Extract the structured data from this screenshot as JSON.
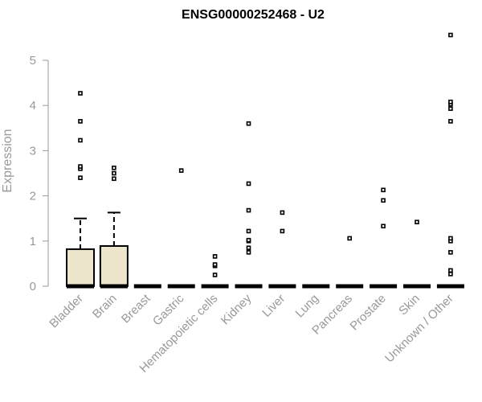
{
  "chart_data": {
    "type": "box",
    "title": "ENSG00000252468 - U2",
    "xlabel": "",
    "ylabel": "Expression",
    "ylim": [
      0,
      5.6
    ],
    "yticks": [
      0,
      1,
      2,
      3,
      4,
      5
    ],
    "grid": false,
    "legend": "none",
    "colors": {
      "box_fill": "#ede6cc",
      "stroke": "#000000",
      "axis_text": "#999999"
    },
    "categories": [
      "Bladder",
      "Brain",
      "Breast",
      "Gastric",
      "Hematopoietic cells",
      "Kidney",
      "Liver",
      "Lung",
      "Pancreas",
      "Prostate",
      "Skin",
      "Unknown / Other"
    ],
    "boxes": [
      {
        "category": "Bladder",
        "min": 0,
        "q1": 0,
        "median": 0,
        "q3": 0.82,
        "whisker_high": 1.5,
        "outliers": [
          2.4,
          2.6,
          2.65,
          3.23,
          3.65,
          4.27
        ]
      },
      {
        "category": "Brain",
        "min": 0,
        "q1": 0,
        "median": 0,
        "q3": 0.89,
        "whisker_high": 1.63,
        "outliers": [
          2.38,
          2.5,
          2.62
        ]
      },
      {
        "category": "Breast",
        "min": 0,
        "q1": 0,
        "median": 0,
        "q3": 0,
        "whisker_high": 0,
        "outliers": []
      },
      {
        "category": "Gastric",
        "min": 0,
        "q1": 0,
        "median": 0,
        "q3": 0,
        "whisker_high": 0,
        "outliers": [
          2.56
        ]
      },
      {
        "category": "Hematopoietic cells",
        "min": 0,
        "q1": 0,
        "median": 0,
        "q3": 0,
        "whisker_high": 0,
        "outliers": [
          0.25,
          0.45,
          0.48,
          0.66
        ]
      },
      {
        "category": "Kidney",
        "min": 0,
        "q1": 0,
        "median": 0,
        "q3": 0,
        "whisker_high": 0,
        "outliers": [
          0.75,
          0.85,
          1.0,
          1.02,
          1.22,
          1.68,
          2.27,
          3.6
        ]
      },
      {
        "category": "Liver",
        "min": 0,
        "q1": 0,
        "median": 0,
        "q3": 0,
        "whisker_high": 0,
        "outliers": [
          1.22,
          1.63
        ]
      },
      {
        "category": "Lung",
        "min": 0,
        "q1": 0,
        "median": 0,
        "q3": 0,
        "whisker_high": 0,
        "outliers": []
      },
      {
        "category": "Pancreas",
        "min": 0,
        "q1": 0,
        "median": 0,
        "q3": 0,
        "whisker_high": 0,
        "outliers": [
          1.06
        ]
      },
      {
        "category": "Prostate",
        "min": 0,
        "q1": 0,
        "median": 0,
        "q3": 0,
        "whisker_high": 0,
        "outliers": [
          1.33,
          1.9,
          2.13
        ]
      },
      {
        "category": "Skin",
        "min": 0,
        "q1": 0,
        "median": 0,
        "q3": 0,
        "whisker_high": 0,
        "outliers": [
          1.42
        ]
      },
      {
        "category": "Unknown / Other",
        "min": 0,
        "q1": 0,
        "median": 0,
        "q3": 0,
        "whisker_high": 0,
        "outliers": [
          0.27,
          0.35,
          0.75,
          1.0,
          1.06,
          3.65,
          3.93,
          4.03,
          4.08,
          5.56
        ]
      }
    ]
  }
}
